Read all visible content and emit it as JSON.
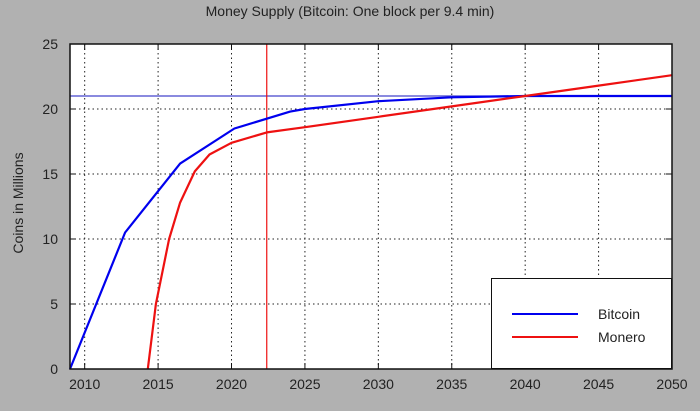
{
  "chart_data": {
    "type": "line",
    "title": "Money Supply (Bitcoin: One block per 9.4 min)",
    "xlabel": "",
    "ylabel": "Coins in Millions",
    "xlim": [
      2009,
      2050
    ],
    "ylim": [
      0,
      25
    ],
    "x_ticks": [
      2010,
      2015,
      2020,
      2025,
      2030,
      2035,
      2040,
      2045,
      2050
    ],
    "y_ticks": [
      0,
      5,
      10,
      15,
      20,
      25
    ],
    "grid": true,
    "grid_style": "dotted",
    "legend_position": "lower right",
    "series": [
      {
        "name": "Bitcoin",
        "color": "#0000ee",
        "x": [
          2009.0,
          2012.75,
          2016.5,
          2020.2,
          2024.0,
          2025,
          2030,
          2035,
          2040,
          2045,
          2050
        ],
        "y": [
          0.0,
          10.5,
          15.8,
          18.5,
          19.8,
          20.0,
          20.6,
          20.9,
          21.0,
          21.0,
          21.0
        ]
      },
      {
        "name": "Monero",
        "color": "#ee1111",
        "x": [
          2014.3,
          2014.85,
          2015.75,
          2016.5,
          2017.5,
          2018.5,
          2020,
          2022.4,
          2025,
          2030,
          2035,
          2040,
          2045,
          2050
        ],
        "y": [
          0.0,
          5.0,
          10.0,
          12.8,
          15.2,
          16.5,
          17.4,
          18.2,
          18.6,
          19.4,
          20.2,
          21.0,
          21.8,
          22.6
        ]
      }
    ],
    "annotations": [
      {
        "type": "hline",
        "y": 21.0,
        "color": "#4444cc",
        "label": ""
      },
      {
        "type": "vline",
        "x": 2022.4,
        "color": "#ee1111",
        "label": ""
      }
    ]
  },
  "legend": {
    "items": [
      {
        "label": "Bitcoin",
        "color": "#0000ee"
      },
      {
        "label": "Monero",
        "color": "#ee1111"
      }
    ]
  }
}
